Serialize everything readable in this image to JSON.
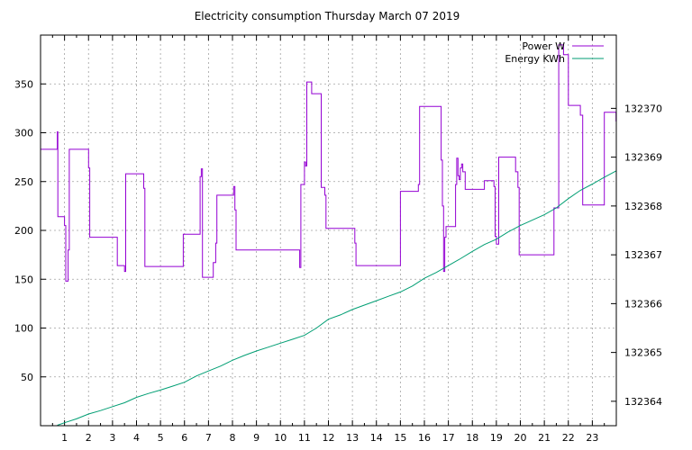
{
  "chart_data": {
    "type": "line",
    "title": "Electricity consumption Thursday March 07 2019",
    "xlabel": "",
    "ylabel": "",
    "y2label": "",
    "grid": true,
    "legend_position": "top-right",
    "xlim": [
      0,
      24
    ],
    "xticks": [
      1,
      2,
      3,
      4,
      5,
      6,
      7,
      8,
      9,
      10,
      11,
      12,
      13,
      14,
      15,
      16,
      17,
      18,
      19,
      20,
      21,
      22,
      23
    ],
    "ylim": [
      0,
      400
    ],
    "yticks": [
      50,
      100,
      150,
      200,
      250,
      300,
      350
    ],
    "y2lim": [
      132363.5,
      132371.5
    ],
    "y2ticks": [
      132364,
      132365,
      132366,
      132367,
      132368,
      132369,
      132370
    ],
    "series": [
      {
        "name": "Power W",
        "axis": "left",
        "color": "#9400d3",
        "step": true,
        "x": [
          0.0,
          0.7,
          0.72,
          0.74,
          1.0,
          1.05,
          1.15,
          1.2,
          1.25,
          2.0,
          2.05,
          2.1,
          3.2,
          3.5,
          3.55,
          4.3,
          4.35,
          4.4,
          5.85,
          5.95,
          6.65,
          6.7,
          6.75,
          7.0,
          7.2,
          7.3,
          7.35,
          7.4,
          8.05,
          8.1,
          8.15,
          8.2,
          8.25,
          10.75,
          10.8,
          10.85,
          11.0,
          11.05,
          11.1,
          11.2,
          11.3,
          11.7,
          11.8,
          11.85,
          11.9,
          12.0,
          13.1,
          13.15,
          14.99,
          15.0,
          15.7,
          15.75,
          15.8,
          16.6,
          16.7,
          16.75,
          16.8,
          16.85,
          16.9,
          17.2,
          17.3,
          17.35,
          17.4,
          17.45,
          17.5,
          17.55,
          17.6,
          17.7,
          18.4,
          18.5,
          18.9,
          18.95,
          19.0,
          19.1,
          19.2,
          19.8,
          19.9,
          19.95,
          20.0,
          21.1,
          21.4,
          21.5,
          21.6,
          21.7,
          21.8,
          22.0,
          22.4,
          22.5,
          22.6,
          23.1,
          23.2,
          23.5,
          23.99
        ],
        "y": [
          283,
          301,
          214,
          214,
          205,
          148,
          180,
          283,
          283,
          264,
          193,
          193,
          164,
          158,
          258,
          243,
          163,
          163,
          163,
          196,
          255,
          263,
          152,
          152,
          167,
          187,
          236,
          236,
          245,
          221,
          180,
          180,
          180,
          180,
          162,
          247,
          270,
          266,
          352,
          352,
          340,
          244,
          244,
          236,
          202,
          202,
          187,
          164,
          164,
          240,
          240,
          247,
          327,
          327,
          272,
          225,
          158,
          193,
          204,
          204,
          247,
          274,
          256,
          252,
          264,
          268,
          260,
          242,
          242,
          251,
          245,
          194,
          186,
          275,
          275,
          260,
          244,
          175,
          175,
          175,
          223,
          223,
          390,
          390,
          380,
          328,
          328,
          318,
          226,
          226,
          226,
          321,
          312
        ]
      },
      {
        "name": "Energy KWh",
        "axis": "right",
        "color": "#009e73",
        "step": false,
        "x": [
          0.7,
          1.0,
          1.5,
          2.0,
          2.5,
          3.0,
          3.5,
          4.0,
          4.5,
          5.0,
          5.5,
          6.0,
          6.5,
          7.0,
          7.5,
          8.0,
          8.5,
          9.0,
          9.5,
          10.0,
          10.5,
          11.0,
          11.5,
          12.0,
          12.5,
          13.0,
          13.5,
          14.0,
          14.5,
          15.0,
          15.5,
          16.0,
          16.5,
          17.0,
          17.5,
          18.0,
          18.5,
          19.0,
          19.5,
          20.0,
          20.5,
          21.0,
          21.5,
          22.0,
          22.5,
          23.0,
          23.5,
          24.0
        ],
        "y": [
          132363.51,
          132363.56,
          132363.64,
          132363.74,
          132363.81,
          132363.89,
          132363.97,
          132364.08,
          132364.16,
          132364.23,
          132364.31,
          132364.39,
          132364.52,
          132364.62,
          132364.72,
          132364.84,
          132364.94,
          132365.03,
          132365.11,
          132365.19,
          132365.27,
          132365.35,
          132365.5,
          132365.68,
          132365.77,
          132365.88,
          132365.97,
          132366.06,
          132366.15,
          132366.24,
          132366.36,
          132366.52,
          132366.64,
          132366.78,
          132366.92,
          132367.07,
          132367.21,
          132367.32,
          132367.47,
          132367.6,
          132367.71,
          132367.82,
          132367.96,
          132368.15,
          132368.32,
          132368.45,
          132368.59,
          132368.72
        ]
      }
    ]
  }
}
